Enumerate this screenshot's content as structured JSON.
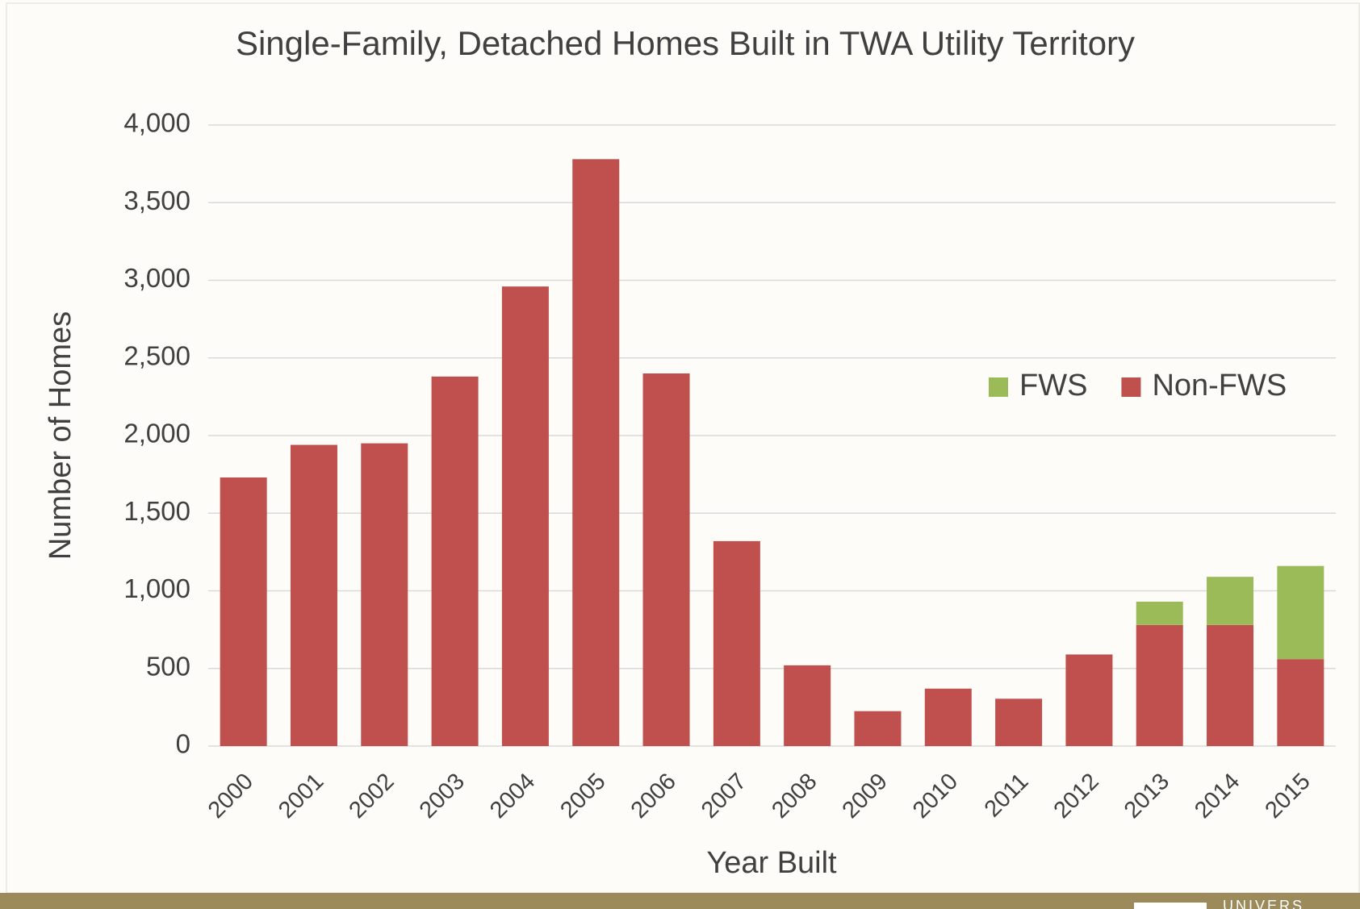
{
  "chart_data": {
    "type": "stacked_bar",
    "title": "Single-Family, Detached Homes Built in TWA Utility Territory",
    "x_label": "Year Built",
    "y_label": "Number of Homes",
    "categories": [
      "2000",
      "2001",
      "2002",
      "2003",
      "2004",
      "2005",
      "2006",
      "2007",
      "2008",
      "2009",
      "2010",
      "2011",
      "2012",
      "2013",
      "2014",
      "2015"
    ],
    "series": [
      {
        "name": "Non-FWS",
        "color": "#c0504d",
        "values": [
          1730,
          1940,
          1950,
          2380,
          2960,
          3780,
          2400,
          1320,
          520,
          225,
          370,
          305,
          590,
          780,
          780,
          560
        ]
      },
      {
        "name": "FWS",
        "color": "#9bbb59",
        "values": [
          0,
          0,
          0,
          0,
          0,
          0,
          0,
          0,
          0,
          0,
          0,
          0,
          0,
          150,
          310,
          600
        ]
      }
    ],
    "ylim": [
      0,
      4000
    ],
    "yticks": [
      0,
      500,
      {
        "value": 1000,
        "label": "1,000"
      },
      {
        "value": 1500,
        "label": "1,500"
      },
      {
        "value": 2000,
        "label": "2,000"
      },
      {
        "value": 2500,
        "label": "2,500"
      },
      {
        "value": 3000,
        "label": "3,000"
      },
      {
        "value": 3500,
        "label": "3,500"
      },
      {
        "value": 4000,
        "label": "4,000"
      }
    ],
    "grid": true,
    "legend_position": "right"
  },
  "footer": {
    "text": "UNIVERS"
  }
}
